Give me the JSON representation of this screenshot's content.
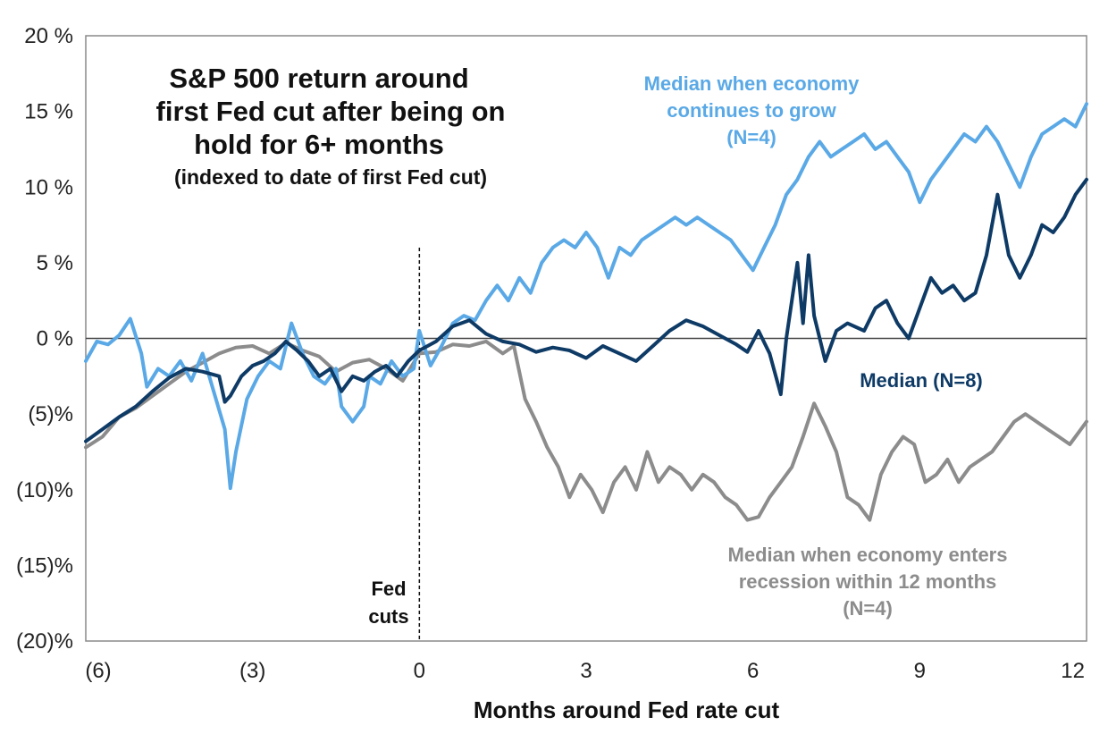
{
  "chart_data": {
    "type": "line",
    "title_lines": [
      "S&P 500 return around",
      "first Fed cut after being on",
      "hold for 6+ months"
    ],
    "subtitle": "(indexed to date of first Fed cut)",
    "xlabel": "Months around Fed rate cut",
    "ylabel": "",
    "xlim": [
      -6,
      12
    ],
    "ylim": [
      -20,
      20
    ],
    "x_ticks": [
      {
        "value": -6,
        "label": "(6)"
      },
      {
        "value": -3,
        "label": "(3)"
      },
      {
        "value": 0,
        "label": "0"
      },
      {
        "value": 3,
        "label": "3"
      },
      {
        "value": 6,
        "label": "6"
      },
      {
        "value": 9,
        "label": "9"
      },
      {
        "value": 12,
        "label": "12"
      }
    ],
    "y_ticks": [
      {
        "value": 20,
        "label": "20 %"
      },
      {
        "value": 15,
        "label": "15 %"
      },
      {
        "value": 10,
        "label": "10 %"
      },
      {
        "value": 5,
        "label": "5 %"
      },
      {
        "value": 0,
        "label": "0 %"
      },
      {
        "value": -5,
        "label": "(5)%"
      },
      {
        "value": -10,
        "label": "(10)%"
      },
      {
        "value": -15,
        "label": "(15)%"
      },
      {
        "value": -20,
        "label": "(20)%"
      }
    ],
    "reference_line": {
      "x": 0,
      "label_lines": [
        "Fed",
        "cuts"
      ]
    },
    "series": [
      {
        "name": "Median when economy enters recession within 12 months (N=4)",
        "label_lines": [
          "Median when economy  enters",
          "recession within 12 months",
          "(N=4)"
        ],
        "color": "#8c8c8c",
        "points": [
          [
            -6.0,
            -7.2
          ],
          [
            -5.7,
            -6.5
          ],
          [
            -5.4,
            -5.2
          ],
          [
            -5.1,
            -4.6
          ],
          [
            -4.8,
            -3.8
          ],
          [
            -4.5,
            -3.0
          ],
          [
            -4.2,
            -2.2
          ],
          [
            -3.9,
            -1.6
          ],
          [
            -3.6,
            -1.0
          ],
          [
            -3.3,
            -0.6
          ],
          [
            -3.0,
            -0.5
          ],
          [
            -2.7,
            -1.0
          ],
          [
            -2.4,
            -0.3
          ],
          [
            -2.1,
            -0.8
          ],
          [
            -1.8,
            -1.2
          ],
          [
            -1.5,
            -2.2
          ],
          [
            -1.2,
            -1.6
          ],
          [
            -0.9,
            -1.4
          ],
          [
            -0.6,
            -2.0
          ],
          [
            -0.3,
            -2.8
          ],
          [
            0.0,
            -1.0
          ],
          [
            0.3,
            -0.9
          ],
          [
            0.6,
            -0.4
          ],
          [
            0.9,
            -0.5
          ],
          [
            1.2,
            -0.2
          ],
          [
            1.5,
            -1.0
          ],
          [
            1.7,
            -0.5
          ],
          [
            1.9,
            -4.0
          ],
          [
            2.1,
            -5.5
          ],
          [
            2.3,
            -7.2
          ],
          [
            2.5,
            -8.5
          ],
          [
            2.7,
            -10.5
          ],
          [
            2.9,
            -9.0
          ],
          [
            3.1,
            -10.0
          ],
          [
            3.3,
            -11.5
          ],
          [
            3.5,
            -9.5
          ],
          [
            3.7,
            -8.5
          ],
          [
            3.9,
            -10.0
          ],
          [
            4.1,
            -7.5
          ],
          [
            4.3,
            -9.5
          ],
          [
            4.5,
            -8.5
          ],
          [
            4.7,
            -9.0
          ],
          [
            4.9,
            -10.0
          ],
          [
            5.1,
            -9.0
          ],
          [
            5.3,
            -9.5
          ],
          [
            5.5,
            -10.5
          ],
          [
            5.7,
            -11.0
          ],
          [
            5.9,
            -12.0
          ],
          [
            6.1,
            -11.8
          ],
          [
            6.3,
            -10.5
          ],
          [
            6.5,
            -9.5
          ],
          [
            6.7,
            -8.5
          ],
          [
            6.9,
            -6.5
          ],
          [
            7.1,
            -4.3
          ],
          [
            7.3,
            -5.8
          ],
          [
            7.5,
            -7.5
          ],
          [
            7.7,
            -10.5
          ],
          [
            7.9,
            -11.0
          ],
          [
            8.1,
            -12.0
          ],
          [
            8.3,
            -9.0
          ],
          [
            8.5,
            -7.5
          ],
          [
            8.7,
            -6.5
          ],
          [
            8.9,
            -7.0
          ],
          [
            9.1,
            -9.5
          ],
          [
            9.3,
            -9.0
          ],
          [
            9.5,
            -8.0
          ],
          [
            9.7,
            -9.5
          ],
          [
            9.9,
            -8.5
          ],
          [
            10.1,
            -8.0
          ],
          [
            10.3,
            -7.5
          ],
          [
            10.5,
            -6.5
          ],
          [
            10.7,
            -5.5
          ],
          [
            10.9,
            -5.0
          ],
          [
            11.1,
            -5.5
          ],
          [
            11.3,
            -6.0
          ],
          [
            11.5,
            -6.5
          ],
          [
            11.7,
            -7.0
          ],
          [
            11.9,
            -6.0
          ],
          [
            12.0,
            -5.5
          ]
        ]
      },
      {
        "name": "Median when economy continues to grow (N=4)",
        "label_lines": [
          "Median when economy",
          "continues to grow",
          "(N=4)"
        ],
        "color": "#5aa9e6",
        "points": [
          [
            -6.0,
            -1.5
          ],
          [
            -5.8,
            -0.2
          ],
          [
            -5.6,
            -0.4
          ],
          [
            -5.4,
            0.2
          ],
          [
            -5.2,
            1.3
          ],
          [
            -5.0,
            -1.0
          ],
          [
            -4.9,
            -3.2
          ],
          [
            -4.7,
            -2.0
          ],
          [
            -4.5,
            -2.5
          ],
          [
            -4.3,
            -1.5
          ],
          [
            -4.1,
            -2.8
          ],
          [
            -3.9,
            -1.0
          ],
          [
            -3.7,
            -3.5
          ],
          [
            -3.5,
            -6.0
          ],
          [
            -3.4,
            -9.9
          ],
          [
            -3.3,
            -7.5
          ],
          [
            -3.1,
            -4.0
          ],
          [
            -2.9,
            -2.5
          ],
          [
            -2.7,
            -1.5
          ],
          [
            -2.5,
            -2.0
          ],
          [
            -2.3,
            1.0
          ],
          [
            -2.1,
            -1.0
          ],
          [
            -1.9,
            -2.5
          ],
          [
            -1.7,
            -3.0
          ],
          [
            -1.5,
            -2.0
          ],
          [
            -1.4,
            -4.5
          ],
          [
            -1.2,
            -5.5
          ],
          [
            -1.0,
            -4.5
          ],
          [
            -0.9,
            -2.5
          ],
          [
            -0.7,
            -3.0
          ],
          [
            -0.5,
            -1.5
          ],
          [
            -0.3,
            -2.5
          ],
          [
            -0.1,
            -2.0
          ],
          [
            0.0,
            0.5
          ],
          [
            0.2,
            -1.8
          ],
          [
            0.4,
            -0.5
          ],
          [
            0.6,
            1.0
          ],
          [
            0.8,
            1.5
          ],
          [
            1.0,
            1.2
          ],
          [
            1.2,
            2.5
          ],
          [
            1.4,
            3.5
          ],
          [
            1.6,
            2.5
          ],
          [
            1.8,
            4.0
          ],
          [
            2.0,
            3.0
          ],
          [
            2.2,
            5.0
          ],
          [
            2.4,
            6.0
          ],
          [
            2.6,
            6.5
          ],
          [
            2.8,
            6.0
          ],
          [
            3.0,
            7.0
          ],
          [
            3.2,
            6.0
          ],
          [
            3.4,
            4.0
          ],
          [
            3.6,
            6.0
          ],
          [
            3.8,
            5.5
          ],
          [
            4.0,
            6.5
          ],
          [
            4.2,
            7.0
          ],
          [
            4.4,
            7.5
          ],
          [
            4.6,
            8.0
          ],
          [
            4.8,
            7.5
          ],
          [
            5.0,
            8.0
          ],
          [
            5.2,
            7.5
          ],
          [
            5.4,
            7.0
          ],
          [
            5.6,
            6.5
          ],
          [
            5.8,
            5.5
          ],
          [
            6.0,
            4.5
          ],
          [
            6.2,
            6.0
          ],
          [
            6.4,
            7.5
          ],
          [
            6.6,
            9.5
          ],
          [
            6.8,
            10.5
          ],
          [
            7.0,
            12.0
          ],
          [
            7.2,
            13.0
          ],
          [
            7.4,
            12.0
          ],
          [
            7.6,
            12.5
          ],
          [
            7.8,
            13.0
          ],
          [
            8.0,
            13.5
          ],
          [
            8.2,
            12.5
          ],
          [
            8.4,
            13.0
          ],
          [
            8.6,
            12.0
          ],
          [
            8.8,
            11.0
          ],
          [
            9.0,
            9.0
          ],
          [
            9.2,
            10.5
          ],
          [
            9.4,
            11.5
          ],
          [
            9.6,
            12.5
          ],
          [
            9.8,
            13.5
          ],
          [
            10.0,
            13.0
          ],
          [
            10.2,
            14.0
          ],
          [
            10.4,
            13.0
          ],
          [
            10.6,
            11.5
          ],
          [
            10.8,
            10.0
          ],
          [
            11.0,
            12.0
          ],
          [
            11.2,
            13.5
          ],
          [
            11.4,
            14.0
          ],
          [
            11.6,
            14.5
          ],
          [
            11.8,
            14.0
          ],
          [
            12.0,
            15.5
          ]
        ]
      },
      {
        "name": "Median (N=8)",
        "label_lines": [
          "Median (N=8)"
        ],
        "color": "#0e3a66",
        "points": [
          [
            -6.0,
            -6.8
          ],
          [
            -5.7,
            -6.0
          ],
          [
            -5.4,
            -5.2
          ],
          [
            -5.1,
            -4.5
          ],
          [
            -4.8,
            -3.5
          ],
          [
            -4.5,
            -2.6
          ],
          [
            -4.2,
            -2.0
          ],
          [
            -3.9,
            -2.2
          ],
          [
            -3.6,
            -2.5
          ],
          [
            -3.5,
            -4.2
          ],
          [
            -3.4,
            -3.8
          ],
          [
            -3.2,
            -2.5
          ],
          [
            -3.0,
            -1.8
          ],
          [
            -2.8,
            -1.5
          ],
          [
            -2.6,
            -1.0
          ],
          [
            -2.4,
            -0.2
          ],
          [
            -2.2,
            -0.8
          ],
          [
            -2.0,
            -1.5
          ],
          [
            -1.8,
            -2.5
          ],
          [
            -1.6,
            -2.0
          ],
          [
            -1.4,
            -3.5
          ],
          [
            -1.2,
            -2.5
          ],
          [
            -1.0,
            -2.8
          ],
          [
            -0.8,
            -2.2
          ],
          [
            -0.6,
            -1.8
          ],
          [
            -0.4,
            -2.5
          ],
          [
            -0.2,
            -1.5
          ],
          [
            0.0,
            -0.8
          ],
          [
            0.3,
            -0.2
          ],
          [
            0.6,
            0.8
          ],
          [
            0.9,
            1.2
          ],
          [
            1.2,
            0.3
          ],
          [
            1.5,
            -0.2
          ],
          [
            1.8,
            -0.4
          ],
          [
            2.1,
            -0.9
          ],
          [
            2.4,
            -0.6
          ],
          [
            2.7,
            -0.8
          ],
          [
            3.0,
            -1.3
          ],
          [
            3.3,
            -0.5
          ],
          [
            3.6,
            -1.0
          ],
          [
            3.9,
            -1.5
          ],
          [
            4.2,
            -0.5
          ],
          [
            4.5,
            0.5
          ],
          [
            4.8,
            1.2
          ],
          [
            5.1,
            0.8
          ],
          [
            5.4,
            0.2
          ],
          [
            5.7,
            -0.4
          ],
          [
            5.9,
            -0.9
          ],
          [
            6.1,
            0.5
          ],
          [
            6.3,
            -1.0
          ],
          [
            6.5,
            -3.7
          ],
          [
            6.6,
            0.0
          ],
          [
            6.8,
            5.0
          ],
          [
            6.9,
            1.0
          ],
          [
            7.0,
            5.5
          ],
          [
            7.1,
            1.5
          ],
          [
            7.3,
            -1.5
          ],
          [
            7.5,
            0.5
          ],
          [
            7.7,
            1.0
          ],
          [
            8.0,
            0.5
          ],
          [
            8.2,
            2.0
          ],
          [
            8.4,
            2.5
          ],
          [
            8.6,
            1.0
          ],
          [
            8.8,
            0.0
          ],
          [
            9.0,
            2.0
          ],
          [
            9.2,
            4.0
          ],
          [
            9.4,
            3.0
          ],
          [
            9.6,
            3.5
          ],
          [
            9.8,
            2.5
          ],
          [
            10.0,
            3.0
          ],
          [
            10.2,
            5.5
          ],
          [
            10.4,
            9.5
          ],
          [
            10.6,
            5.5
          ],
          [
            10.8,
            4.0
          ],
          [
            11.0,
            5.5
          ],
          [
            11.2,
            7.5
          ],
          [
            11.4,
            7.0
          ],
          [
            11.6,
            8.0
          ],
          [
            11.8,
            9.5
          ],
          [
            12.0,
            10.5
          ]
        ]
      }
    ],
    "grid": false,
    "legend": "none"
  }
}
